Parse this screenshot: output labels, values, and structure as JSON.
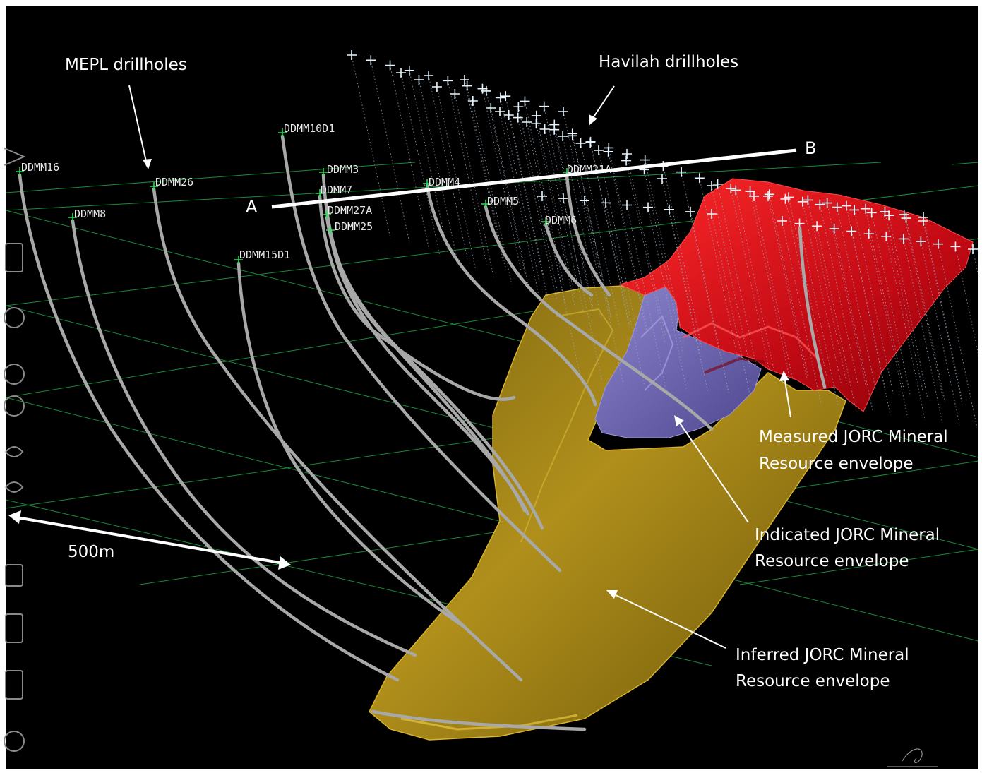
{
  "annotations": {
    "mepl": "MEPL drillholes",
    "havilah": "Havilah drillholes",
    "scale": "500m",
    "measured_line1": "Measured JORC Mineral",
    "measured_line2": "Resource envelope",
    "indicated_line1": "Indicated JORC Mineral",
    "indicated_line2": "Resource envelope",
    "inferred_line1": "Inferred JORC Mineral",
    "inferred_line2": "Resource envelope"
  },
  "section": {
    "start": "A",
    "end": "B"
  },
  "drillholes": [
    "DDMM16",
    "DDMM26",
    "DDMM8",
    "DDMM10D1",
    "DDMM3",
    "DDMM7",
    "DDMM27A",
    "DDMM25",
    "DDMM15D1",
    "DDMM4",
    "DDMM5",
    "DDMM6",
    "DDMM21A"
  ],
  "colors": {
    "background": "#000000",
    "drillhole": "#a8a8a8",
    "grid": "#1a8a3a",
    "measured": "#d4101a",
    "indicated": "#6d66b4",
    "inferred": "#b08f1b",
    "havilah_marker": "#e8f7ff",
    "annotation": "#ffffff"
  },
  "icons": {
    "watermark": "vertical-watermark-strip",
    "logo": "corner-logo-mark"
  }
}
